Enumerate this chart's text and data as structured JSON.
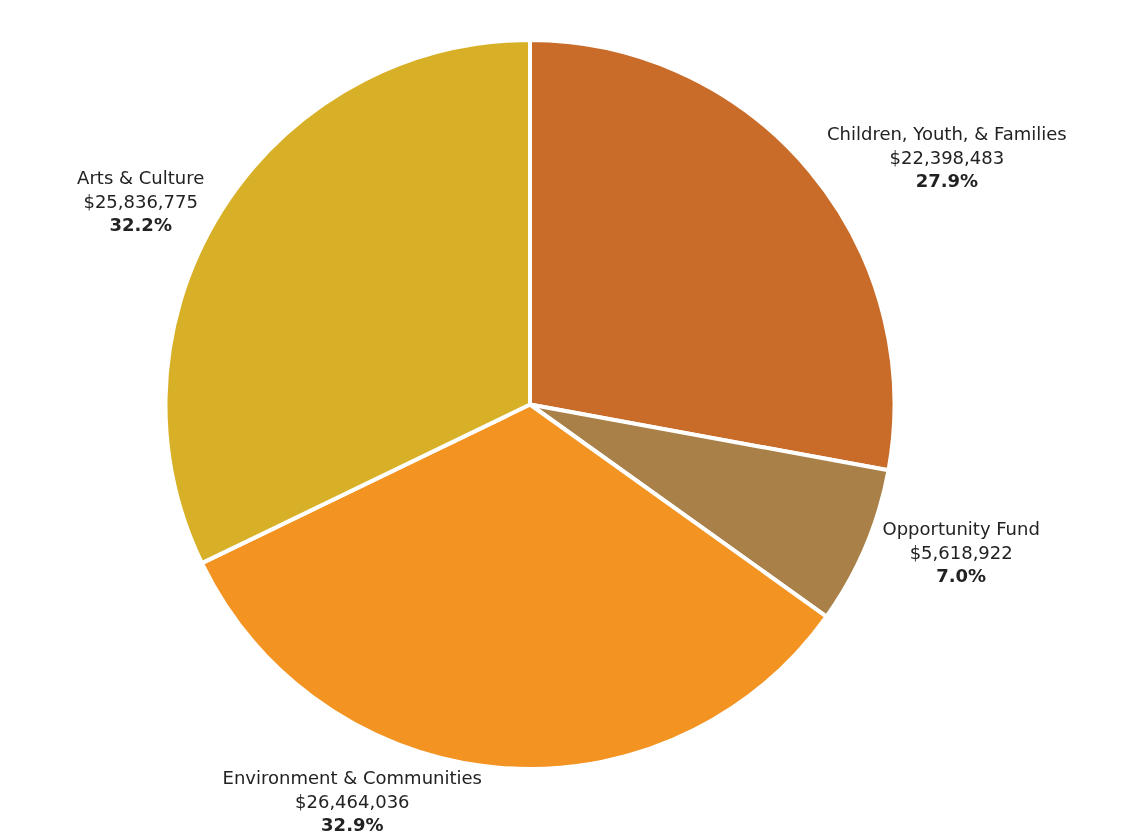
{
  "chart_data": {
    "type": "pie",
    "categories": [
      "Children, Youth, & Families",
      "Opportunity Fund",
      "Environment & Communities",
      "Arts & Culture"
    ],
    "values": [
      22398483,
      5618922,
      26464036,
      25836775
    ],
    "value_labels": [
      "$22,398,483\n27.9%",
      "$5,618,922\n7.0%",
      "$26,464,036\n32.9%",
      "$25,836,775\n32.2%"
    ],
    "colors": [
      "#c96c29",
      "#a98048",
      "#f39321",
      "#d8b027"
    ],
    "legend": false
  }
}
